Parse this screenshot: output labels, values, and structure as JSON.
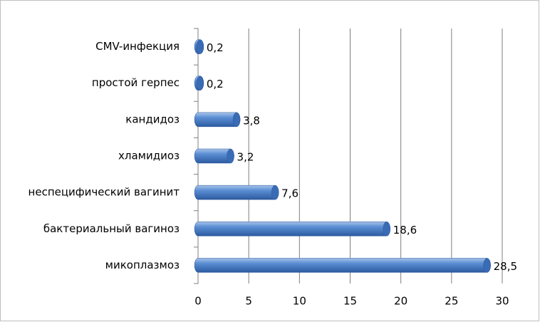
{
  "chart_data": {
    "type": "bar",
    "orientation": "horizontal",
    "categories": [
      "CMV-инфекция",
      "простой герпес",
      "кандидоз",
      "хламидиоз",
      "неспецифический вагинит",
      "бактериальный вагиноз",
      "микоплазмоз"
    ],
    "values": [
      0.2,
      0.2,
      3.8,
      3.2,
      7.6,
      18.6,
      28.5
    ],
    "value_labels": [
      "0,2",
      "0,2",
      "3,8",
      "3,2",
      "7,6",
      "18,6",
      "28,5"
    ],
    "color": "#4a7ebb",
    "xlim": [
      0,
      30
    ],
    "xticks": [
      0,
      5,
      10,
      15,
      20,
      25,
      30
    ],
    "grid": true
  }
}
